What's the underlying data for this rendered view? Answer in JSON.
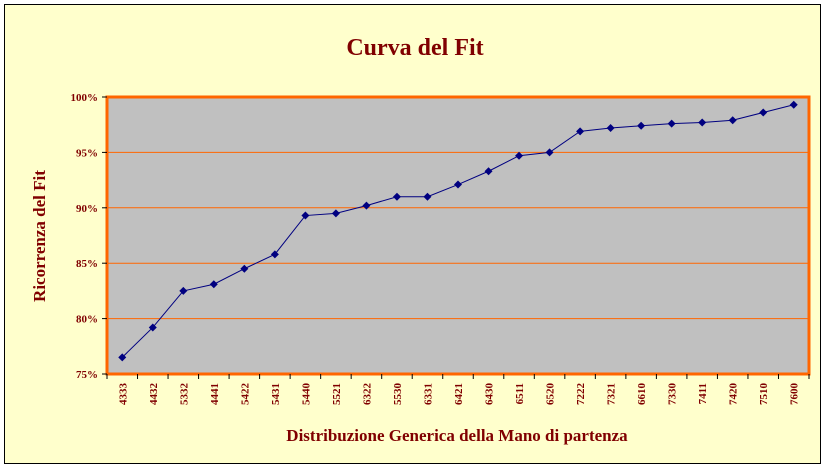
{
  "chart_data": {
    "type": "line",
    "title": "Curva del Fit",
    "xlabel": "Distribuzione Generica della Mano di partenza",
    "ylabel": "Ricorrenza del Fit",
    "categories": [
      "4333",
      "4432",
      "5332",
      "4441",
      "5422",
      "5431",
      "5440",
      "5521",
      "6322",
      "5530",
      "6331",
      "6421",
      "6430",
      "6511",
      "6520",
      "7222",
      "7321",
      "6610",
      "7330",
      "7411",
      "7420",
      "7510",
      "7600"
    ],
    "series": [
      {
        "values": [
          76.5,
          79.2,
          82.5,
          83.1,
          84.5,
          85.8,
          89.3,
          89.5,
          90.2,
          91.0,
          91.0,
          92.1,
          93.3,
          94.7,
          95.0,
          96.9,
          97.2,
          97.4,
          97.6,
          97.7,
          97.9,
          98.6,
          99.3
        ],
        "color": "#000080"
      }
    ],
    "ylim": [
      75,
      100
    ],
    "yticks": [
      75,
      80,
      85,
      90,
      95,
      100
    ],
    "ytick_labels": [
      "75%",
      "80%",
      "85%",
      "90%",
      "95%",
      "100%"
    ],
    "grid": true,
    "legend": "none",
    "colors": {
      "background": "#ffffcc",
      "plot_area": "#c0c0c0",
      "plot_border": "#ff6600",
      "gridline": "#ff6600",
      "text": "#800000",
      "marker": "#000080"
    }
  }
}
